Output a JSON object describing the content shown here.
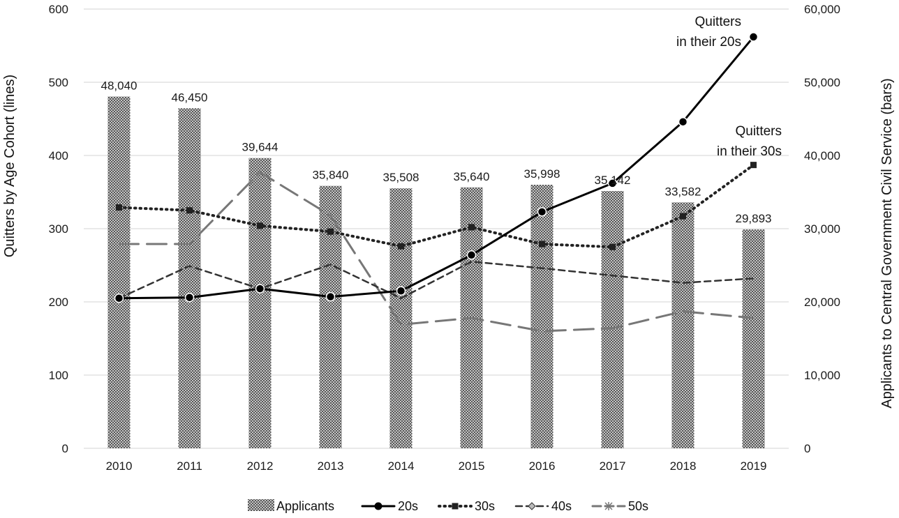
{
  "chart_data": {
    "type": "bar",
    "title": "",
    "categories": [
      "2010",
      "2011",
      "2012",
      "2013",
      "2014",
      "2015",
      "2016",
      "2017",
      "2018",
      "2019"
    ],
    "bar_series": {
      "name": "Applicants",
      "values": [
        48040,
        46450,
        39644,
        35840,
        35508,
        35640,
        35998,
        35142,
        33582,
        29893
      ],
      "labels": [
        "48,040",
        "46,450",
        "39,644",
        "35,840",
        "35,508",
        "35,640",
        "35,998",
        "35,142",
        "33,582",
        "29,893"
      ]
    },
    "line_series": [
      {
        "name": "20s",
        "values": [
          205,
          206,
          218,
          207,
          215,
          264,
          323,
          362,
          446,
          562
        ],
        "color": "#000000",
        "style": "solid",
        "marker": "circle"
      },
      {
        "name": "30s",
        "values": [
          329,
          325,
          304,
          296,
          276,
          302,
          279,
          275,
          317,
          387
        ],
        "color": "#222222",
        "style": "dotted",
        "marker": "square"
      },
      {
        "name": "40s",
        "values": [
          205,
          249,
          218,
          251,
          205,
          255,
          246,
          236,
          226,
          232
        ],
        "color": "#333333",
        "style": "dashed",
        "marker": "diamond"
      },
      {
        "name": "50s",
        "values": [
          279,
          279,
          377,
          318,
          169,
          178,
          160,
          164,
          187,
          178
        ],
        "color": "#777777",
        "style": "longdash",
        "marker": "star"
      }
    ],
    "y_left": {
      "label": "Quitters by Age Cohort (lines)",
      "min": 0,
      "max": 600,
      "ticks": [
        "0",
        "100",
        "200",
        "300",
        "400",
        "500",
        "600"
      ]
    },
    "y_right": {
      "label": "Applicants to Central Government Civil Service (bars)",
      "min": 0,
      "max": 60000,
      "ticks": [
        "0",
        "10,000",
        "20,000",
        "30,000",
        "40,000",
        "50,000",
        "60,000"
      ]
    },
    "grid": true,
    "legend_position": "bottom",
    "legend": [
      "Applicants",
      "20s",
      "30s",
      "40s",
      "50s"
    ],
    "annotations": [
      {
        "lines": [
          "Quitters",
          "in their 20s"
        ]
      },
      {
        "lines": [
          "Quitters",
          "in their 30s"
        ]
      }
    ]
  }
}
